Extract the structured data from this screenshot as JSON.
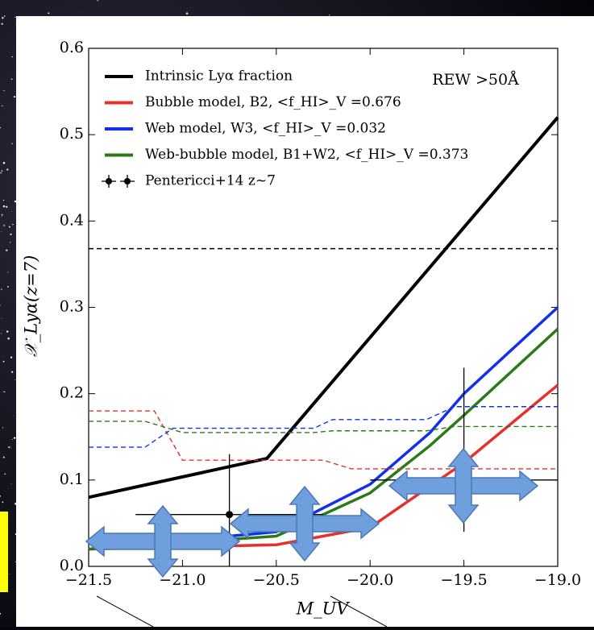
{
  "chart_data": {
    "type": "line",
    "xlabel": "M_UV",
    "ylabel": "𝒳_Lyα(z=7)",
    "annotation": "REW >50Å",
    "xlim": [
      -21.5,
      -19.0
    ],
    "ylim": [
      0,
      0.6
    ],
    "xticks": [
      {
        "value": -21.5,
        "label": "−21.5"
      },
      {
        "value": -21.0,
        "label": "−21.0"
      },
      {
        "value": -20.5,
        "label": "−20.5"
      },
      {
        "value": -20.0,
        "label": "−20.0"
      },
      {
        "value": -19.5,
        "label": "−19.5"
      },
      {
        "value": -19.0,
        "label": "−19.0"
      }
    ],
    "yticks": [
      {
        "value": 0,
        "label": "0.0"
      },
      0.1,
      0.2,
      0.3,
      0.4,
      0.5,
      0.6
    ],
    "series": [
      {
        "name": "Intrinsic Lyα fraction",
        "color": "#000000",
        "style": "solid",
        "x": [
          -21.5,
          -20.55,
          -19.0
        ],
        "values": [
          0.08,
          0.125,
          0.52
        ]
      },
      {
        "name": "Bubble model, B2, <f_HI>_V =0.676",
        "color": "#e8302a",
        "style": "solid",
        "x": [
          -21.5,
          -20.5,
          -20.0,
          -19.5,
          -19.0
        ],
        "values": [
          0.02,
          0.025,
          0.045,
          0.12,
          0.21
        ]
      },
      {
        "name": "Web model, W3, <f_HI>_V =0.032",
        "color": "#1030ee",
        "style": "solid",
        "x": [
          -21.5,
          -20.5,
          -20.0,
          -19.68,
          -19.5,
          -19.0
        ],
        "values": [
          0.02,
          0.04,
          0.095,
          0.155,
          0.2,
          0.3
        ]
      },
      {
        "name": "Web-bubble model, B1+W2, <f_HI>_V =0.373",
        "color": "#2a7a1a",
        "style": "solid",
        "x": [
          -21.5,
          -20.5,
          -20.0,
          -19.68,
          -19.5,
          -19.0
        ],
        "values": [
          0.02,
          0.035,
          0.085,
          0.14,
          0.175,
          0.275
        ]
      },
      {
        "color": "#000000",
        "style": "dashed",
        "x": [
          -21.5,
          -19.0
        ],
        "values": [
          0.368,
          0.368
        ]
      },
      {
        "color": "#e8302a",
        "style": "dashed",
        "x": [
          -21.5,
          -21.15,
          -21.0,
          -20.25,
          -20.1,
          -19.0
        ],
        "values": [
          0.18,
          0.18,
          0.123,
          0.123,
          0.113,
          0.113
        ]
      },
      {
        "color": "#1030ee",
        "style": "dashed",
        "x": [
          -21.5,
          -21.2,
          -21.05,
          -20.3,
          -20.2,
          -19.7,
          -19.55,
          -19.0
        ],
        "values": [
          0.138,
          0.138,
          0.16,
          0.16,
          0.17,
          0.17,
          0.185,
          0.185
        ]
      },
      {
        "color": "#2a7a1a",
        "style": "dashed",
        "x": [
          -21.5,
          -21.2,
          -21.0,
          -20.3,
          -20.2,
          -19.7,
          -19.55,
          -19.0
        ],
        "values": [
          0.168,
          0.168,
          0.155,
          0.155,
          0.157,
          0.157,
          0.162,
          0.162
        ]
      }
    ],
    "errorbars": {
      "name": "Pentericci+14 z~7",
      "color": "#000000",
      "x": [
        -20.75,
        -19.5
      ],
      "values": [
        0.06,
        0.1
      ],
      "xerr": [
        0.5,
        0.5
      ],
      "yerr_low": [
        0.06,
        0.06
      ],
      "yerr_high": [
        0.07,
        0.13
      ]
    }
  }
}
